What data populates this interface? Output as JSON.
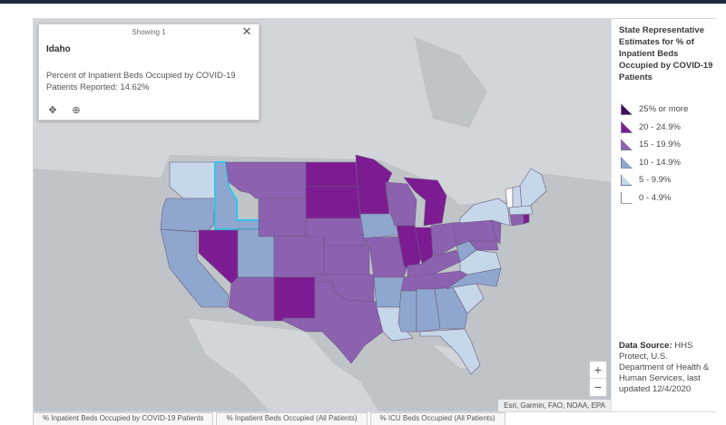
{
  "popup": {
    "header": "Showing 1",
    "title": "Idaho",
    "body": "Percent of Inpatient Beds Occupied by COVID-19 Patients Reported: 14.62%",
    "value": 14.62
  },
  "legend": {
    "title": "State Representative Estimates for % of Inpatient Beds Occupied by COVID-19 Patients",
    "classes": [
      {
        "label": "25% or more",
        "color": "#3f0f57"
      },
      {
        "label": "20 - 24.9%",
        "color": "#7d1c92"
      },
      {
        "label": "15 - 19.9%",
        "color": "#8c61b0"
      },
      {
        "label": "10 - 14.9%",
        "color": "#8fa7cf"
      },
      {
        "label": "5 - 9.9%",
        "color": "#c7d7ea"
      },
      {
        "label": "0 - 4.9%",
        "color": "#ffffff"
      }
    ]
  },
  "source": {
    "label": "Data Source:",
    "text": "HHS Protect, U.S. Department of Health & Human Services, last updated 12/4/2020"
  },
  "attribution": "Esri, Garmin, FAO, NOAA, EPA",
  "zoom": {
    "in": "+",
    "out": "−"
  },
  "tabs": [
    "% Inpatient Beds Occupied by COVID-19 Patients",
    "% Inpatient Beds Occupied (All Patients)",
    "% ICU Beds Occupied (All Patients)"
  ],
  "colors": {
    "land": "#d2d5d9",
    "water": "#bfc4c9",
    "highlight": "#35c3e6"
  }
}
